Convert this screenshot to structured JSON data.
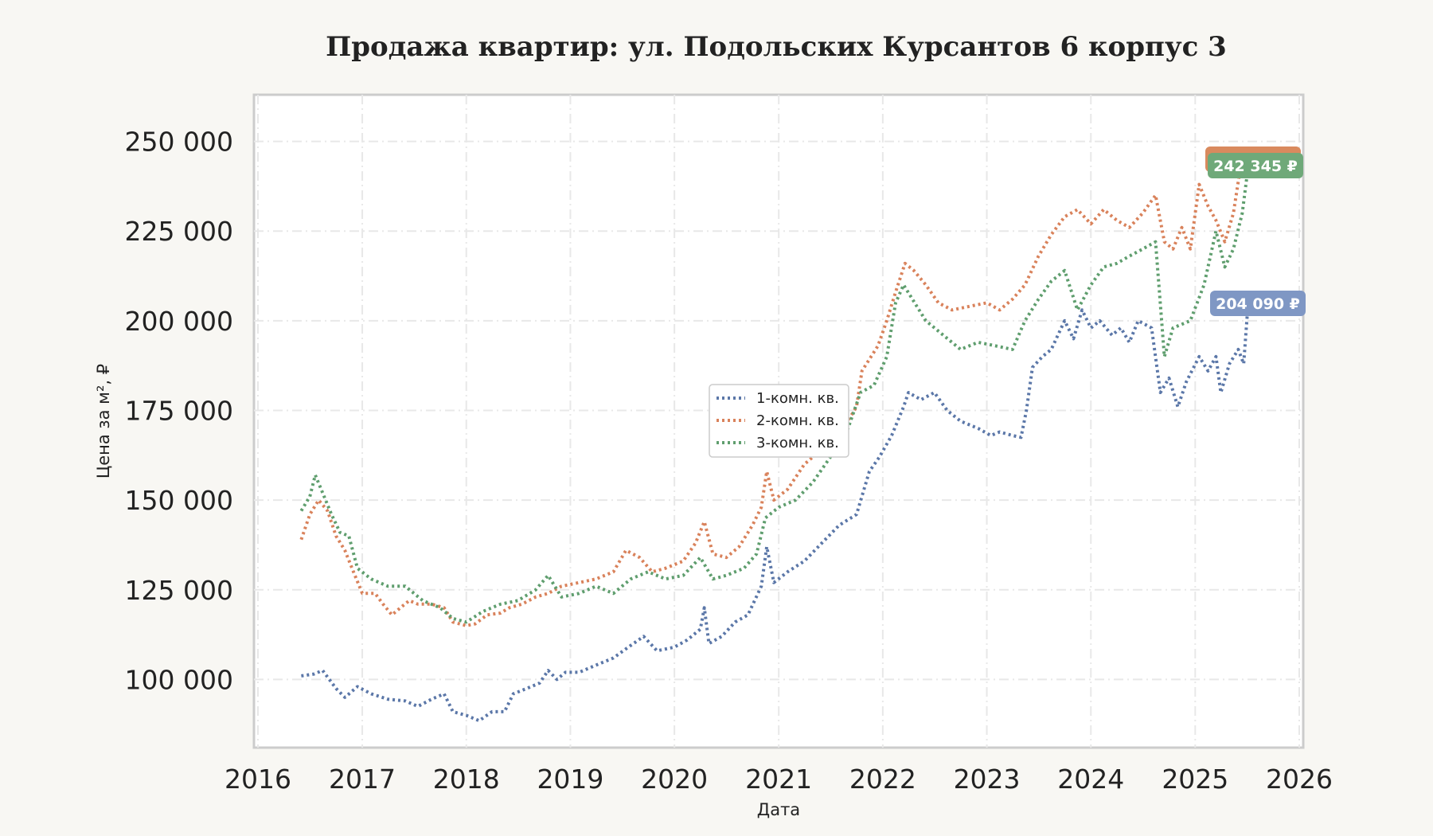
{
  "chart_data": {
    "type": "line",
    "title": "Продажа квартир: ул. Подольских Курсантов 6 корпус 3",
    "xlabel": "Дата",
    "ylabel": "Цена за м², ₽",
    "xlim": [
      "2016-01-01",
      "2026-01-01"
    ],
    "ylim": [
      81000,
      263000
    ],
    "xticks": [
      "2016",
      "2017",
      "2018",
      "2019",
      "2020",
      "2021",
      "2022",
      "2023",
      "2024",
      "2025",
      "2026"
    ],
    "yticks": [
      {
        "value": 100000,
        "label": "100 000"
      },
      {
        "value": 125000,
        "label": "125 000"
      },
      {
        "value": 150000,
        "label": "150 000"
      },
      {
        "value": 175000,
        "label": "175 000"
      },
      {
        "value": 200000,
        "label": "200 000"
      },
      {
        "value": 225000,
        "label": "225 000"
      },
      {
        "value": 250000,
        "label": "250 000"
      }
    ],
    "grid": true,
    "legend_position": "center",
    "line_style": "dotted",
    "series": [
      {
        "name": "1-комн. кв.",
        "color": "#5b77a8",
        "label_color": "#7f97c4",
        "end_label": "204 090 ₽",
        "points": [
          [
            "2016-06-01",
            101000
          ],
          [
            "2016-07-15",
            101500
          ],
          [
            "2016-08-15",
            102500
          ],
          [
            "2016-10-01",
            97500
          ],
          [
            "2016-11-01",
            95000
          ],
          [
            "2016-12-15",
            98000
          ],
          [
            "2017-02-01",
            96000
          ],
          [
            "2017-04-01",
            94500
          ],
          [
            "2017-06-01",
            94000
          ],
          [
            "2017-07-15",
            92500
          ],
          [
            "2017-09-01",
            94500
          ],
          [
            "2017-10-15",
            96000
          ],
          [
            "2017-11-15",
            91000
          ],
          [
            "2018-01-01",
            90000
          ],
          [
            "2018-02-15",
            88500
          ],
          [
            "2018-04-01",
            91000
          ],
          [
            "2018-05-15",
            91000
          ],
          [
            "2018-06-15",
            96000
          ],
          [
            "2018-08-01",
            97500
          ],
          [
            "2018-09-15",
            99000
          ],
          [
            "2018-10-15",
            102500
          ],
          [
            "2018-11-15",
            100000
          ],
          [
            "2018-12-15",
            102000
          ],
          [
            "2019-02-01",
            102000
          ],
          [
            "2019-04-01",
            104000
          ],
          [
            "2019-06-01",
            106000
          ],
          [
            "2019-08-01",
            109500
          ],
          [
            "2019-09-15",
            112000
          ],
          [
            "2019-11-01",
            108000
          ],
          [
            "2020-01-01",
            109000
          ],
          [
            "2020-02-15",
            111000
          ],
          [
            "2020-04-01",
            114000
          ],
          [
            "2020-04-15",
            120000
          ],
          [
            "2020-05-01",
            110000
          ],
          [
            "2020-06-15",
            112000
          ],
          [
            "2020-08-01",
            116000
          ],
          [
            "2020-09-15",
            118000
          ],
          [
            "2020-11-01",
            126000
          ],
          [
            "2020-11-20",
            137000
          ],
          [
            "2020-12-15",
            127000
          ],
          [
            "2021-02-01",
            130000
          ],
          [
            "2021-04-01",
            133000
          ],
          [
            "2021-06-01",
            138000
          ],
          [
            "2021-08-01",
            143000
          ],
          [
            "2021-10-01",
            146000
          ],
          [
            "2021-11-15",
            158000
          ],
          [
            "2021-12-20",
            162000
          ],
          [
            "2022-02-01",
            168000
          ],
          [
            "2022-03-15",
            176000
          ],
          [
            "2022-04-01",
            180000
          ],
          [
            "2022-05-15",
            178000
          ],
          [
            "2022-07-01",
            180000
          ],
          [
            "2022-08-15",
            175000
          ],
          [
            "2022-10-01",
            172000
          ],
          [
            "2022-12-01",
            170000
          ],
          [
            "2023-01-15",
            168000
          ],
          [
            "2023-02-15",
            169000
          ],
          [
            "2023-04-01",
            168000
          ],
          [
            "2023-05-01",
            167500
          ],
          [
            "2023-05-20",
            175000
          ],
          [
            "2023-06-10",
            187000
          ],
          [
            "2023-07-15",
            190000
          ],
          [
            "2023-08-15",
            192000
          ],
          [
            "2023-10-01",
            200000
          ],
          [
            "2023-11-01",
            195000
          ],
          [
            "2023-12-01",
            203000
          ],
          [
            "2024-01-01",
            198000
          ],
          [
            "2024-02-01",
            200000
          ],
          [
            "2024-03-15",
            196000
          ],
          [
            "2024-04-15",
            198000
          ],
          [
            "2024-05-15",
            194000
          ],
          [
            "2024-06-15",
            200000
          ],
          [
            "2024-08-01",
            198000
          ],
          [
            "2024-09-01",
            180000
          ],
          [
            "2024-10-01",
            184000
          ],
          [
            "2024-11-01",
            176000
          ],
          [
            "2024-12-01",
            183000
          ],
          [
            "2025-01-15",
            190000
          ],
          [
            "2025-02-15",
            186000
          ],
          [
            "2025-03-15",
            190000
          ],
          [
            "2025-04-01",
            180000
          ],
          [
            "2025-05-01",
            188000
          ],
          [
            "2025-06-01",
            192000
          ],
          [
            "2025-06-20",
            188000
          ],
          [
            "2025-07-05",
            204090
          ]
        ]
      },
      {
        "name": "2-комн. кв.",
        "color": "#d9825b",
        "label_color": "#d98a5e",
        "end_label": "244 830 ₽",
        "points": [
          [
            "2016-06-01",
            139000
          ],
          [
            "2016-07-01",
            146000
          ],
          [
            "2016-08-01",
            150000
          ],
          [
            "2016-09-01",
            147000
          ],
          [
            "2016-10-01",
            140000
          ],
          [
            "2016-11-01",
            136000
          ],
          [
            "2016-12-01",
            130000
          ],
          [
            "2017-01-01",
            124000
          ],
          [
            "2017-02-15",
            124000
          ],
          [
            "2017-03-15",
            121000
          ],
          [
            "2017-04-15",
            118000
          ],
          [
            "2017-05-15",
            120000
          ],
          [
            "2017-06-15",
            122000
          ],
          [
            "2017-07-15",
            121000
          ],
          [
            "2017-09-01",
            121000
          ],
          [
            "2017-10-15",
            120000
          ],
          [
            "2017-11-15",
            116000
          ],
          [
            "2018-01-01",
            115000
          ],
          [
            "2018-02-01",
            115500
          ],
          [
            "2018-03-15",
            118000
          ],
          [
            "2018-05-01",
            118500
          ],
          [
            "2018-06-01",
            120000
          ],
          [
            "2018-07-15",
            121000
          ],
          [
            "2018-09-01",
            123000
          ],
          [
            "2018-10-15",
            124000
          ],
          [
            "2018-12-01",
            126000
          ],
          [
            "2019-02-01",
            127000
          ],
          [
            "2019-04-01",
            128000
          ],
          [
            "2019-06-01",
            130000
          ],
          [
            "2019-07-15",
            136000
          ],
          [
            "2019-09-01",
            134000
          ],
          [
            "2019-10-15",
            130000
          ],
          [
            "2019-12-01",
            131000
          ],
          [
            "2020-02-01",
            133000
          ],
          [
            "2020-03-15",
            138000
          ],
          [
            "2020-04-15",
            144000
          ],
          [
            "2020-05-15",
            135000
          ],
          [
            "2020-07-01",
            134000
          ],
          [
            "2020-08-15",
            137000
          ],
          [
            "2020-10-01",
            143000
          ],
          [
            "2020-11-01",
            148000
          ],
          [
            "2020-11-20",
            158000
          ],
          [
            "2020-12-15",
            150000
          ],
          [
            "2021-02-01",
            153000
          ],
          [
            "2021-04-01",
            160000
          ],
          [
            "2021-05-15",
            163000
          ],
          [
            "2021-07-01",
            166000
          ],
          [
            "2021-08-15",
            170000
          ],
          [
            "2021-10-01",
            176000
          ],
          [
            "2021-10-20",
            186000
          ],
          [
            "2021-12-15",
            193000
          ],
          [
            "2022-01-15",
            200000
          ],
          [
            "2022-02-15",
            208000
          ],
          [
            "2022-03-20",
            216000
          ],
          [
            "2022-04-20",
            214000
          ],
          [
            "2022-06-01",
            210000
          ],
          [
            "2022-07-15",
            205000
          ],
          [
            "2022-09-01",
            203000
          ],
          [
            "2022-11-01",
            204000
          ],
          [
            "2023-01-01",
            205000
          ],
          [
            "2023-02-15",
            203000
          ],
          [
            "2023-04-01",
            206000
          ],
          [
            "2023-05-15",
            210000
          ],
          [
            "2023-07-01",
            218000
          ],
          [
            "2023-08-15",
            224000
          ],
          [
            "2023-10-01",
            229000
          ],
          [
            "2023-11-15",
            231000
          ],
          [
            "2024-01-01",
            227000
          ],
          [
            "2024-02-15",
            231000
          ],
          [
            "2024-04-01",
            228000
          ],
          [
            "2024-05-15",
            226000
          ],
          [
            "2024-07-01",
            230000
          ],
          [
            "2024-08-15",
            235000
          ],
          [
            "2024-09-15",
            222000
          ],
          [
            "2024-10-15",
            220000
          ],
          [
            "2024-11-15",
            226000
          ],
          [
            "2024-12-15",
            220000
          ],
          [
            "2025-01-15",
            238000
          ],
          [
            "2025-02-15",
            232000
          ],
          [
            "2025-03-15",
            228000
          ],
          [
            "2025-04-15",
            222000
          ],
          [
            "2025-05-15",
            230000
          ],
          [
            "2025-06-15",
            246000
          ],
          [
            "2025-07-05",
            244830
          ]
        ]
      },
      {
        "name": "3-комн. кв.",
        "color": "#5f9e6e",
        "label_color": "#6fa979",
        "end_label": "242 345 ₽",
        "points": [
          [
            "2016-06-01",
            147000
          ],
          [
            "2016-07-01",
            151000
          ],
          [
            "2016-07-20",
            157000
          ],
          [
            "2016-08-15",
            152000
          ],
          [
            "2016-09-15",
            146000
          ],
          [
            "2016-10-15",
            141000
          ],
          [
            "2016-11-15",
            140000
          ],
          [
            "2016-12-15",
            131000
          ],
          [
            "2017-02-01",
            128000
          ],
          [
            "2017-04-01",
            126000
          ],
          [
            "2017-06-01",
            126000
          ],
          [
            "2017-08-01",
            122000
          ],
          [
            "2017-10-01",
            120000
          ],
          [
            "2017-11-15",
            117000
          ],
          [
            "2018-01-01",
            116000
          ],
          [
            "2018-03-01",
            119000
          ],
          [
            "2018-05-01",
            121000
          ],
          [
            "2018-07-01",
            122000
          ],
          [
            "2018-09-01",
            125000
          ],
          [
            "2018-10-15",
            129000
          ],
          [
            "2018-12-01",
            123000
          ],
          [
            "2019-02-01",
            124000
          ],
          [
            "2019-04-01",
            126000
          ],
          [
            "2019-06-01",
            124000
          ],
          [
            "2019-08-01",
            128000
          ],
          [
            "2019-10-01",
            130000
          ],
          [
            "2019-12-01",
            128000
          ],
          [
            "2020-02-01",
            129000
          ],
          [
            "2020-04-01",
            134000
          ],
          [
            "2020-05-15",
            128000
          ],
          [
            "2020-07-01",
            129000
          ],
          [
            "2020-09-01",
            131000
          ],
          [
            "2020-10-15",
            135000
          ],
          [
            "2020-11-15",
            145000
          ],
          [
            "2021-01-01",
            148000
          ],
          [
            "2021-03-01",
            150000
          ],
          [
            "2021-05-01",
            155000
          ],
          [
            "2021-07-01",
            162000
          ],
          [
            "2021-09-01",
            170000
          ],
          [
            "2021-10-15",
            180000
          ],
          [
            "2021-12-01",
            182000
          ],
          [
            "2022-01-15",
            190000
          ],
          [
            "2022-02-15",
            205000
          ],
          [
            "2022-03-15",
            210000
          ],
          [
            "2022-04-15",
            206000
          ],
          [
            "2022-06-01",
            200000
          ],
          [
            "2022-08-01",
            196000
          ],
          [
            "2022-10-01",
            192000
          ],
          [
            "2022-12-01",
            194000
          ],
          [
            "2023-02-01",
            193000
          ],
          [
            "2023-04-01",
            192000
          ],
          [
            "2023-05-15",
            200000
          ],
          [
            "2023-07-01",
            206000
          ],
          [
            "2023-08-15",
            211000
          ],
          [
            "2023-10-01",
            214000
          ],
          [
            "2023-11-15",
            203000
          ],
          [
            "2024-01-01",
            210000
          ],
          [
            "2024-02-15",
            215000
          ],
          [
            "2024-04-01",
            216000
          ],
          [
            "2024-05-15",
            218000
          ],
          [
            "2024-07-01",
            220000
          ],
          [
            "2024-08-15",
            222000
          ],
          [
            "2024-09-15",
            190000
          ],
          [
            "2024-10-15",
            198000
          ],
          [
            "2024-12-15",
            200000
          ],
          [
            "2025-02-01",
            210000
          ],
          [
            "2025-03-15",
            225000
          ],
          [
            "2025-04-15",
            215000
          ],
          [
            "2025-05-15",
            220000
          ],
          [
            "2025-06-15",
            230000
          ],
          [
            "2025-07-05",
            242345
          ]
        ]
      }
    ]
  }
}
